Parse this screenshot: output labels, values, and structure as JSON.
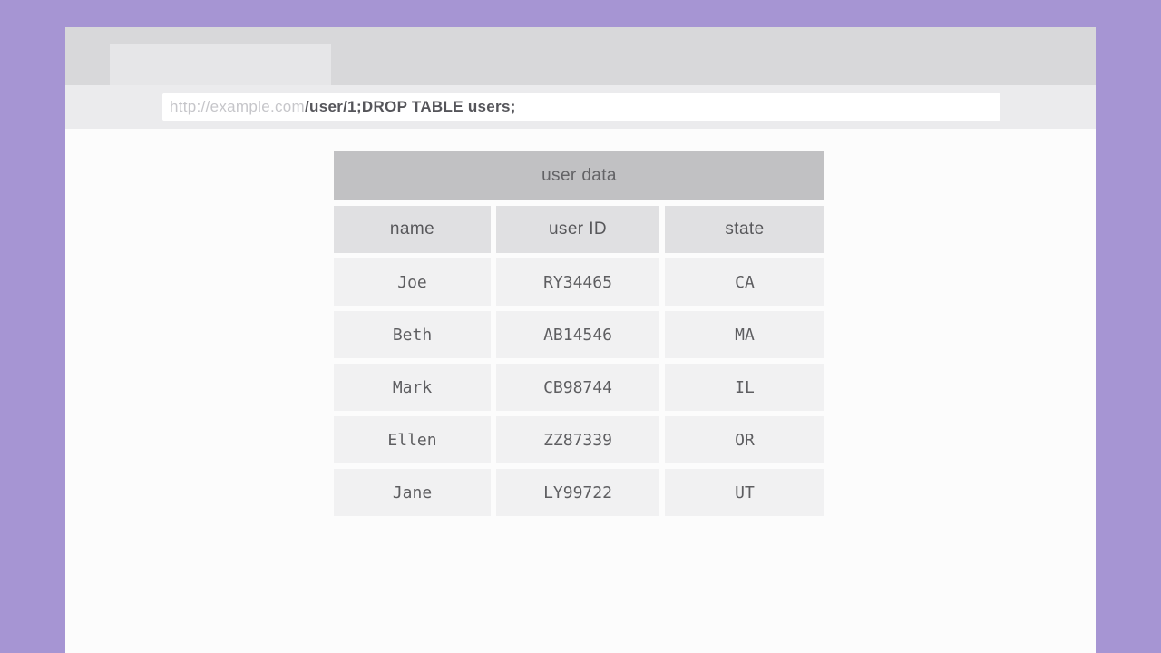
{
  "colors": {
    "purple-bg": "#a695d3",
    "chrome-bar": "#d8d8da",
    "tab": "#e6e6e8",
    "address-row": "#ebebed",
    "input-bg": "#ffffff",
    "page-bg": "#fcfcfc",
    "table-title-bg": "#c1c1c3",
    "table-header-bg": "#e0e0e2",
    "table-cell-bg": "#f1f1f2",
    "url-domain-color": "#c6c6ca",
    "url-path-color": "#55555a",
    "text-color": "#5e5e61"
  },
  "browser": {
    "address_bar": {
      "domain": "http://example.com",
      "path": "/user/1;DROP TABLE users;"
    }
  },
  "table": {
    "title": "user data",
    "columns": [
      "name",
      "user ID",
      "state"
    ],
    "rows": [
      [
        "Joe",
        "RY34465",
        "CA"
      ],
      [
        "Beth",
        "AB14546",
        "MA"
      ],
      [
        "Mark",
        "CB98744",
        "IL"
      ],
      [
        "Ellen",
        "ZZ87339",
        "OR"
      ],
      [
        "Jane",
        "LY99722",
        "UT"
      ]
    ]
  }
}
